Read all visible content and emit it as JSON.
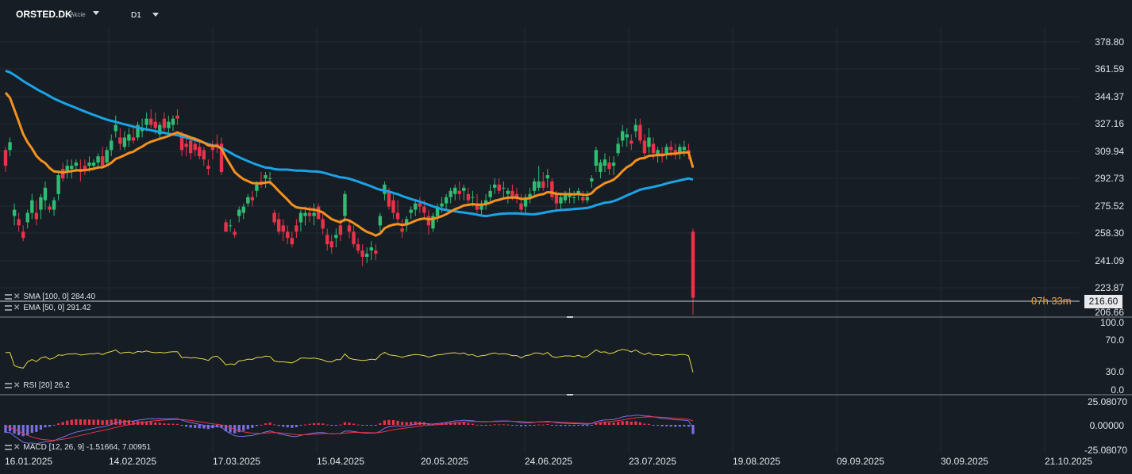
{
  "header": {
    "symbol": "ORSTED.DK",
    "instrument_type": "Akcie",
    "timeframe": "D1"
  },
  "price_axis": {
    "labels": [
      "378.80",
      "361.59",
      "344.37",
      "327.16",
      "309.94",
      "292.73",
      "275.52",
      "258.30",
      "241.09",
      "223.87",
      "206.66"
    ],
    "last_price": "216.60",
    "countdown_h": "07h",
    "countdown_m": "33m"
  },
  "rsi_axis": {
    "labels": [
      "100.0",
      "70.0",
      "30.0",
      "0.0"
    ]
  },
  "macd_axis": {
    "labels": [
      "25.08070",
      "0.00000",
      "-25.08070"
    ]
  },
  "time_axis": {
    "labels": [
      "16.01.2025",
      "14.02.2025",
      "17.03.2025",
      "15.04.2025",
      "20.05.2025",
      "24.06.2025",
      "23.07.2025",
      "19.08.2025",
      "09.09.2025",
      "30.09.2025",
      "21.10.2025"
    ]
  },
  "indicators": {
    "sma": {
      "label": "SMA [100, 0]",
      "value": "284.40",
      "color": "#1aa3e8"
    },
    "ema": {
      "label": "EMA [50, 0]",
      "value": "291.42",
      "color": "#f5911e"
    },
    "rsi": {
      "label": "RSI [20]",
      "value": "26.2",
      "color": "#e2d54a"
    },
    "macd": {
      "label": "MACD [12, 26, 9]",
      "value1": "-1.51664,",
      "value2": "7.00951"
    }
  },
  "colors": {
    "background": "#161d24",
    "bull": "#2ebd72",
    "bear": "#e8334a",
    "grid": "#222b33"
  },
  "chart_data": {
    "type": "candlestick",
    "date_range": [
      "16.01.2025",
      "2025-08-07"
    ],
    "candles": [
      [
        310,
        312,
        296,
        300
      ],
      [
        310,
        318,
        306,
        315
      ],
      [
        268,
        276,
        262,
        272
      ],
      [
        266,
        270,
        258,
        262
      ],
      [
        258,
        262,
        252,
        254
      ],
      [
        264,
        272,
        260,
        270
      ],
      [
        270,
        282,
        266,
        278
      ],
      [
        270,
        278,
        262,
        266
      ],
      [
        272,
        282,
        266,
        280
      ],
      [
        278,
        290,
        272,
        286
      ],
      [
        274,
        276,
        270,
        272
      ],
      [
        272,
        280,
        268,
        278
      ],
      [
        282,
        296,
        278,
        294
      ],
      [
        298,
        302,
        290,
        292
      ],
      [
        296,
        304,
        292,
        300
      ],
      [
        298,
        304,
        292,
        300
      ],
      [
        300,
        304,
        296,
        302
      ],
      [
        298,
        304,
        290,
        296
      ],
      [
        300,
        304,
        294,
        298
      ],
      [
        300,
        306,
        296,
        302
      ],
      [
        300,
        304,
        298,
        302
      ],
      [
        302,
        308,
        298,
        306
      ],
      [
        306,
        312,
        298,
        300
      ],
      [
        302,
        312,
        300,
        310
      ],
      [
        310,
        320,
        306,
        316
      ],
      [
        322,
        332,
        318,
        326
      ],
      [
        318,
        324,
        310,
        314
      ],
      [
        312,
        322,
        310,
        318
      ],
      [
        316,
        324,
        312,
        320
      ],
      [
        318,
        326,
        314,
        316
      ],
      [
        318,
        328,
        316,
        326
      ],
      [
        322,
        330,
        318,
        324
      ],
      [
        326,
        334,
        322,
        330
      ],
      [
        330,
        336,
        324,
        326
      ],
      [
        328,
        334,
        320,
        324
      ],
      [
        320,
        328,
        318,
        326
      ],
      [
        330,
        334,
        322,
        324
      ],
      [
        324,
        332,
        320,
        328
      ],
      [
        326,
        332,
        322,
        330
      ],
      [
        332,
        336,
        326,
        330
      ],
      [
        320,
        322,
        306,
        310
      ],
      [
        314,
        318,
        306,
        312
      ],
      [
        316,
        318,
        304,
        308
      ],
      [
        314,
        318,
        306,
        310
      ],
      [
        312,
        316,
        304,
        306
      ],
      [
        310,
        312,
        300,
        304
      ],
      [
        300,
        304,
        294,
        298
      ],
      [
        312,
        316,
        304,
        310
      ],
      [
        314,
        320,
        308,
        312
      ],
      [
        314,
        318,
        294,
        296
      ],
      [
        264,
        266,
        258,
        258
      ],
      [
        262,
        266,
        258,
        262
      ],
      [
        258,
        260,
        254,
        256
      ],
      [
        268,
        274,
        264,
        272
      ],
      [
        270,
        276,
        266,
        274
      ],
      [
        276,
        282,
        274,
        280
      ],
      [
        280,
        284,
        274,
        278
      ],
      [
        284,
        290,
        280,
        288
      ],
      [
        290,
        296,
        286,
        288
      ],
      [
        292,
        296,
        286,
        294
      ],
      [
        292,
        296,
        288,
        292
      ],
      [
        270,
        272,
        262,
        264
      ],
      [
        266,
        270,
        256,
        258
      ],
      [
        262,
        266,
        252,
        258
      ],
      [
        258,
        262,
        250,
        254
      ],
      [
        254,
        258,
        248,
        250
      ],
      [
        262,
        266,
        254,
        258
      ],
      [
        264,
        272,
        258,
        270
      ],
      [
        268,
        274,
        262,
        270
      ],
      [
        270,
        274,
        264,
        268
      ],
      [
        268,
        276,
        262,
        270
      ],
      [
        274,
        276,
        266,
        266
      ],
      [
        266,
        270,
        256,
        260
      ],
      [
        256,
        260,
        246,
        250
      ],
      [
        252,
        256,
        244,
        248
      ],
      [
        254,
        260,
        248,
        256
      ],
      [
        262,
        266,
        252,
        256
      ],
      [
        268,
        284,
        264,
        282
      ],
      [
        262,
        266,
        254,
        258
      ],
      [
        258,
        262,
        248,
        250
      ],
      [
        250,
        254,
        244,
        246
      ],
      [
        246,
        250,
        236,
        242
      ],
      [
        242,
        248,
        238,
        244
      ],
      [
        246,
        252,
        240,
        248
      ],
      [
        246,
        250,
        240,
        244
      ],
      [
        262,
        270,
        258,
        268
      ],
      [
        282,
        290,
        278,
        288
      ],
      [
        284,
        286,
        272,
        274
      ],
      [
        278,
        282,
        266,
        270
      ],
      [
        270,
        278,
        262,
        266
      ],
      [
        260,
        266,
        254,
        258
      ],
      [
        262,
        268,
        258,
        266
      ],
      [
        270,
        274,
        266,
        272
      ],
      [
        272,
        278,
        268,
        276
      ],
      [
        276,
        280,
        270,
        274
      ],
      [
        274,
        278,
        266,
        270
      ],
      [
        268,
        272,
        256,
        262
      ],
      [
        260,
        270,
        258,
        268
      ],
      [
        268,
        276,
        264,
        274
      ],
      [
        274,
        280,
        270,
        276
      ],
      [
        276,
        282,
        272,
        280
      ],
      [
        280,
        286,
        276,
        284
      ],
      [
        282,
        288,
        278,
        286
      ],
      [
        284,
        290,
        278,
        282
      ],
      [
        284,
        288,
        278,
        286
      ],
      [
        282,
        286,
        276,
        278
      ],
      [
        280,
        284,
        274,
        280
      ],
      [
        276,
        282,
        270,
        272
      ],
      [
        272,
        278,
        268,
        276
      ],
      [
        276,
        282,
        272,
        278
      ],
      [
        280,
        288,
        276,
        284
      ],
      [
        286,
        292,
        282,
        288
      ],
      [
        288,
        292,
        282,
        284
      ],
      [
        286,
        290,
        280,
        286
      ],
      [
        282,
        286,
        276,
        284
      ],
      [
        284,
        288,
        278,
        280
      ],
      [
        282,
        286,
        276,
        280
      ],
      [
        276,
        282,
        270,
        272
      ],
      [
        274,
        282,
        270,
        280
      ],
      [
        280,
        286,
        276,
        282
      ],
      [
        284,
        292,
        280,
        290
      ],
      [
        286,
        300,
        284,
        290
      ],
      [
        290,
        296,
        284,
        286
      ],
      [
        292,
        298,
        286,
        294
      ],
      [
        290,
        292,
        278,
        280
      ],
      [
        282,
        284,
        272,
        276
      ],
      [
        276,
        282,
        272,
        280
      ],
      [
        278,
        284,
        276,
        282
      ],
      [
        280,
        286,
        276,
        282
      ],
      [
        280,
        284,
        276,
        280
      ],
      [
        282,
        286,
        278,
        284
      ],
      [
        280,
        284,
        276,
        278
      ],
      [
        278,
        284,
        276,
        280
      ],
      [
        290,
        294,
        286,
        292
      ],
      [
        300,
        312,
        296,
        310
      ],
      [
        296,
        304,
        292,
        302
      ],
      [
        300,
        308,
        296,
        304
      ],
      [
        302,
        306,
        294,
        298
      ],
      [
        300,
        306,
        294,
        302
      ],
      [
        308,
        318,
        306,
        314
      ],
      [
        316,
        326,
        312,
        322
      ],
      [
        318,
        324,
        312,
        320
      ],
      [
        316,
        320,
        310,
        314
      ],
      [
        322,
        330,
        318,
        326
      ],
      [
        326,
        330,
        314,
        316
      ],
      [
        316,
        320,
        304,
        308
      ],
      [
        312,
        324,
        308,
        318
      ],
      [
        314,
        318,
        304,
        308
      ],
      [
        306,
        312,
        302,
        310
      ],
      [
        308,
        312,
        302,
        306
      ],
      [
        308,
        314,
        304,
        312
      ],
      [
        312,
        316,
        306,
        310
      ],
      [
        310,
        314,
        304,
        308
      ],
      [
        308,
        314,
        304,
        312
      ],
      [
        310,
        316,
        306,
        312
      ],
      [
        310,
        314,
        304,
        308
      ],
      [
        258,
        260,
        205,
        216
      ]
    ]
  }
}
